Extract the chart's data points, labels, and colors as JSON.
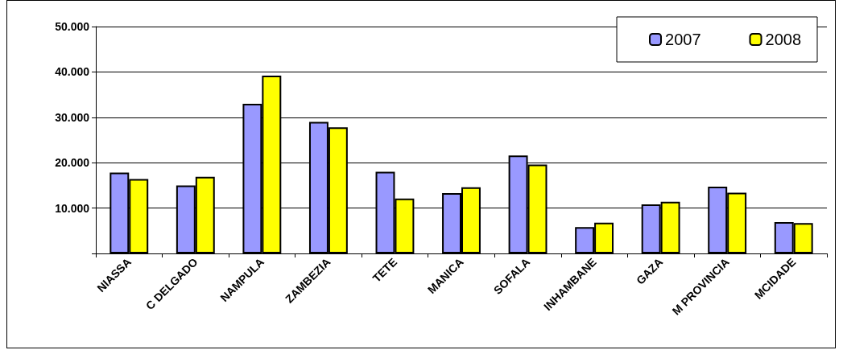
{
  "chart_data": {
    "type": "bar",
    "categories": [
      "NIASSA",
      "C DELGADO",
      "NAMPULA",
      "ZAMBEZIA",
      "TETE",
      "MANICA",
      "SOFALA",
      "INHAMBANE",
      "GAZA",
      "M PROVINCIA",
      "MCIDADE"
    ],
    "series": [
      {
        "name": "2007",
        "color": "#9999ff",
        "values": [
          17800,
          15000,
          33000,
          29000,
          18000,
          13300,
          21600,
          5800,
          10800,
          14700,
          6900
        ]
      },
      {
        "name": "2008",
        "color": "#ffff00",
        "values": [
          16400,
          16900,
          39200,
          27800,
          12100,
          14600,
          19600,
          6800,
          11400,
          13400,
          6700
        ]
      }
    ],
    "ylim": [
      0,
      50000
    ],
    "yticks": [
      {
        "value": 0,
        "label": null
      },
      {
        "value": 10000,
        "label": "10.000"
      },
      {
        "value": 20000,
        "label": "20.000"
      },
      {
        "value": 30000,
        "label": "30.000"
      },
      {
        "value": 40000,
        "label": "40.000"
      },
      {
        "value": 50000,
        "label": "50.000"
      }
    ],
    "grid": "y",
    "legend": "top right"
  }
}
